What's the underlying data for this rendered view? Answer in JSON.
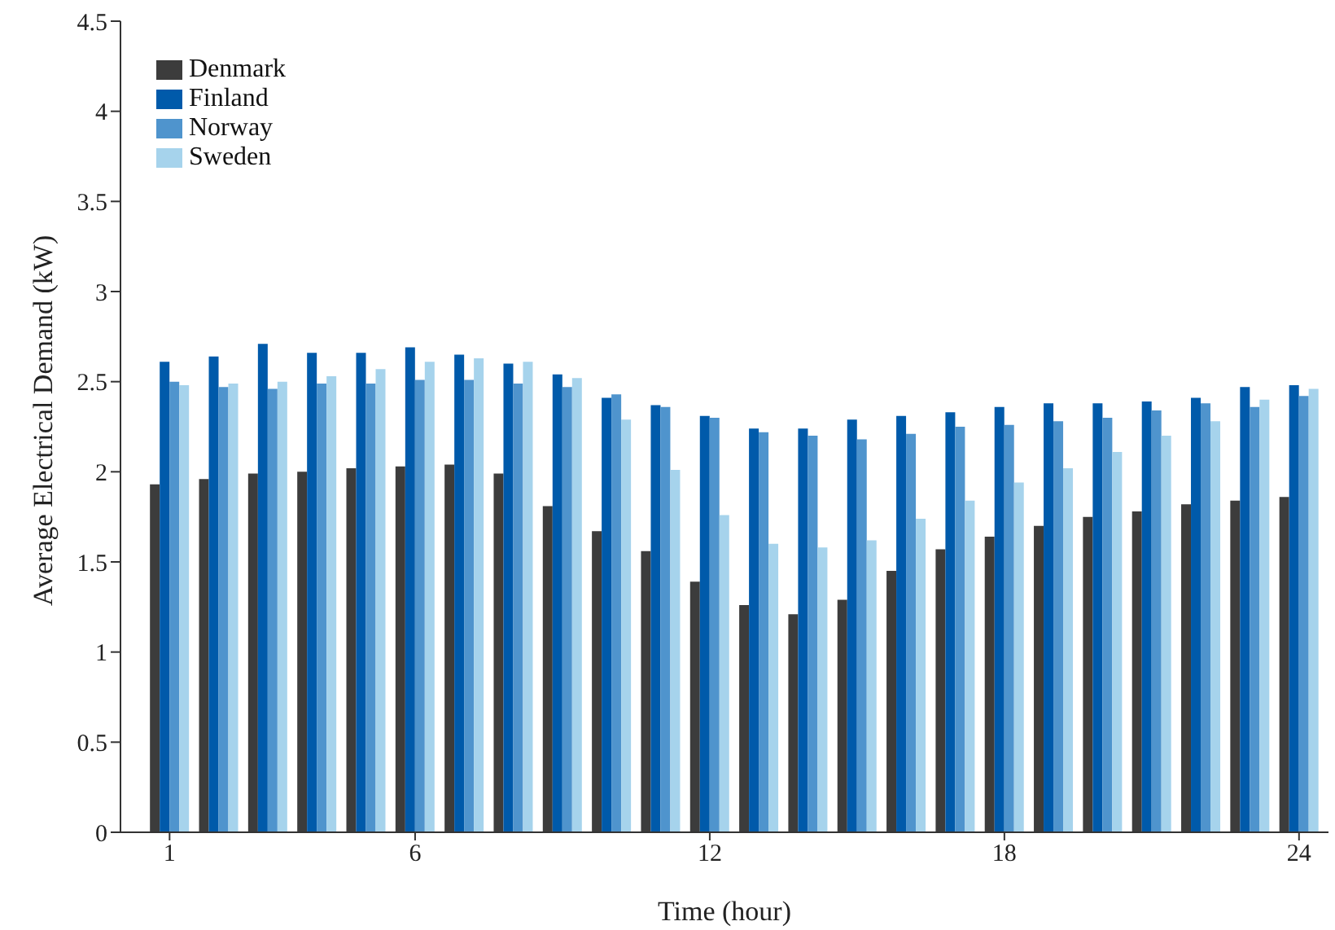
{
  "chart_data": {
    "type": "bar",
    "xlabel": "Time (hour)",
    "ylabel": "Average Electrical Demand (kW)",
    "x": [
      1,
      2,
      3,
      4,
      5,
      6,
      7,
      8,
      9,
      10,
      11,
      12,
      13,
      14,
      15,
      16,
      17,
      18,
      19,
      20,
      21,
      22,
      23,
      24
    ],
    "series": [
      {
        "name": "Denmark",
        "color": "#3c3c3c",
        "values": [
          1.93,
          1.96,
          1.99,
          2.0,
          2.02,
          2.03,
          2.04,
          1.99,
          1.81,
          1.67,
          1.56,
          1.39,
          1.26,
          1.21,
          1.29,
          1.45,
          1.57,
          1.64,
          1.7,
          1.75,
          1.78,
          1.82,
          1.84,
          1.86
        ]
      },
      {
        "name": "Finland",
        "color": "#005aaa",
        "values": [
          2.61,
          2.64,
          2.71,
          2.66,
          2.66,
          2.69,
          2.65,
          2.6,
          2.54,
          2.41,
          2.37,
          2.31,
          2.24,
          2.24,
          2.29,
          2.31,
          2.33,
          2.36,
          2.38,
          2.38,
          2.39,
          2.41,
          2.47,
          2.48
        ]
      },
      {
        "name": "Norway",
        "color": "#4f94cd",
        "values": [
          2.5,
          2.47,
          2.46,
          2.49,
          2.49,
          2.51,
          2.51,
          2.49,
          2.47,
          2.43,
          2.36,
          2.3,
          2.22,
          2.2,
          2.18,
          2.21,
          2.25,
          2.26,
          2.28,
          2.3,
          2.34,
          2.38,
          2.36,
          2.42
        ]
      },
      {
        "name": "Sweden",
        "color": "#a6d3ec",
        "values": [
          2.48,
          2.49,
          2.5,
          2.53,
          2.57,
          2.61,
          2.63,
          2.61,
          2.52,
          2.29,
          2.01,
          1.76,
          1.6,
          1.58,
          1.62,
          1.74,
          1.84,
          1.94,
          2.02,
          2.11,
          2.2,
          2.28,
          2.4,
          2.46
        ]
      }
    ],
    "xlim": [
      0,
      24.6
    ],
    "xticks": [
      1,
      6,
      12,
      18,
      24
    ],
    "ylim": [
      0,
      4.5
    ],
    "yticks": [
      0,
      0.5,
      1,
      1.5,
      2,
      2.5,
      3,
      3.5,
      4,
      4.5
    ],
    "grid": false,
    "legend": "top left"
  }
}
